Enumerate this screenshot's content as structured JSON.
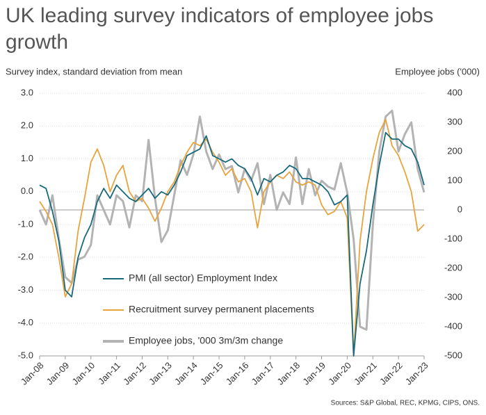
{
  "chart_data": {
    "type": "line",
    "title": "UK leading survey indicators of employee jobs growth",
    "y_label": "Survey index, standard deviation from mean",
    "y2_label": "Employee jobs ('000)",
    "source": "Sources: S&P Global, REC, KPMG, CIPS, ONS.",
    "categories": [
      "Jan-08",
      null,
      null,
      null,
      "Jan-09",
      null,
      null,
      null,
      "Jan-10",
      null,
      null,
      null,
      "Jan-11",
      null,
      null,
      null,
      "Jan-12",
      null,
      null,
      null,
      "Jan-13",
      null,
      null,
      null,
      "Jan-14",
      null,
      null,
      null,
      "Jan-15",
      null,
      null,
      null,
      "Jan-16",
      null,
      null,
      null,
      "Jan-17",
      null,
      null,
      null,
      "Jan-18",
      null,
      null,
      null,
      "Jan-19",
      null,
      null,
      null,
      "Jan-20",
      null,
      null,
      null,
      "Jan-21",
      null,
      null,
      null,
      "Jan-22",
      null,
      null,
      null,
      "Jan-23"
    ],
    "series": [
      {
        "name": "PMI (all sector) Employment Index",
        "color": "#17697b",
        "axis": "y",
        "values": [
          0.2,
          0.1,
          -0.6,
          -1.5,
          -3.0,
          -3.2,
          -2.0,
          -1.4,
          -1.0,
          -0.3,
          0.1,
          -0.2,
          0.2,
          0.0,
          -0.2,
          -0.3,
          -0.1,
          0.1,
          -0.2,
          0.0,
          -0.1,
          0.2,
          0.6,
          1.1,
          1.2,
          1.3,
          1.7,
          1.1,
          1.0,
          0.9,
          1.0,
          0.8,
          0.7,
          0.4,
          -0.1,
          0.4,
          0.3,
          0.5,
          0.6,
          0.8,
          0.7,
          0.4,
          0.4,
          0.3,
          0.2,
          0.0,
          -0.4,
          -0.3,
          -0.1,
          -5.0,
          -2.8,
          -1.8,
          -0.4,
          0.8,
          1.8,
          1.6,
          1.6,
          1.4,
          1.3,
          0.9,
          0.2
        ]
      },
      {
        "name": "Recruitment survey permanent placements",
        "color": "#e8a33c",
        "axis": "y",
        "values": [
          -0.3,
          -0.6,
          -1.0,
          -2.0,
          -3.2,
          -2.8,
          -1.2,
          -0.2,
          0.9,
          1.3,
          0.8,
          0.0,
          0.5,
          0.8,
          0.0,
          -0.3,
          -0.2,
          -0.5,
          -0.9,
          -0.5,
          0.0,
          0.3,
          0.8,
          1.2,
          1.5,
          1.4,
          1.6,
          1.2,
          0.9,
          0.5,
          0.7,
          0.3,
          0.4,
          0.0,
          -1.1,
          0.0,
          0.3,
          0.5,
          0.4,
          0.6,
          0.3,
          0.2,
          0.3,
          0.2,
          -0.4,
          -0.7,
          -0.6,
          -0.3,
          -0.8,
          -5.0,
          -1.5,
          0.0,
          1.0,
          1.8,
          2.2,
          1.4,
          1.1,
          0.6,
          0.0,
          -1.2,
          -1.0
        ]
      },
      {
        "name": "Employee jobs, '000 3m/3m change",
        "color": "#b3b3b3",
        "axis": "y2",
        "values": [
          0,
          -50,
          50,
          -100,
          -230,
          -250,
          -170,
          -160,
          -120,
          50,
          0,
          -50,
          50,
          30,
          -60,
          50,
          30,
          240,
          40,
          -110,
          -70,
          50,
          170,
          120,
          190,
          320,
          200,
          140,
          190,
          140,
          150,
          60,
          140,
          100,
          160,
          20,
          120,
          0,
          60,
          20,
          180,
          20,
          140,
          50,
          100,
          80,
          70,
          160,
          60,
          -100,
          -400,
          -410,
          -50,
          200,
          320,
          340,
          200,
          260,
          300,
          140,
          60
        ]
      }
    ],
    "ylim": [
      -5,
      3
    ],
    "yticks": [
      {
        "value": -5,
        "label": "-5.0"
      },
      {
        "value": -4,
        "label": "-4.0"
      },
      {
        "value": -3,
        "label": "-3.0"
      },
      {
        "value": -2,
        "label": "-2.0"
      },
      {
        "value": -1,
        "label": "-1.0"
      },
      {
        "value": 0,
        "label": "0.0"
      },
      {
        "value": 1,
        "label": "1.0"
      },
      {
        "value": 2,
        "label": "2.0"
      },
      {
        "value": 3,
        "label": "3.0"
      }
    ],
    "y2lim": [
      -500,
      400
    ],
    "y2ticks": [
      -500,
      -400,
      -300,
      -200,
      -100,
      0,
      100,
      200,
      300,
      400
    ],
    "grid": true,
    "legend": "lower left"
  }
}
